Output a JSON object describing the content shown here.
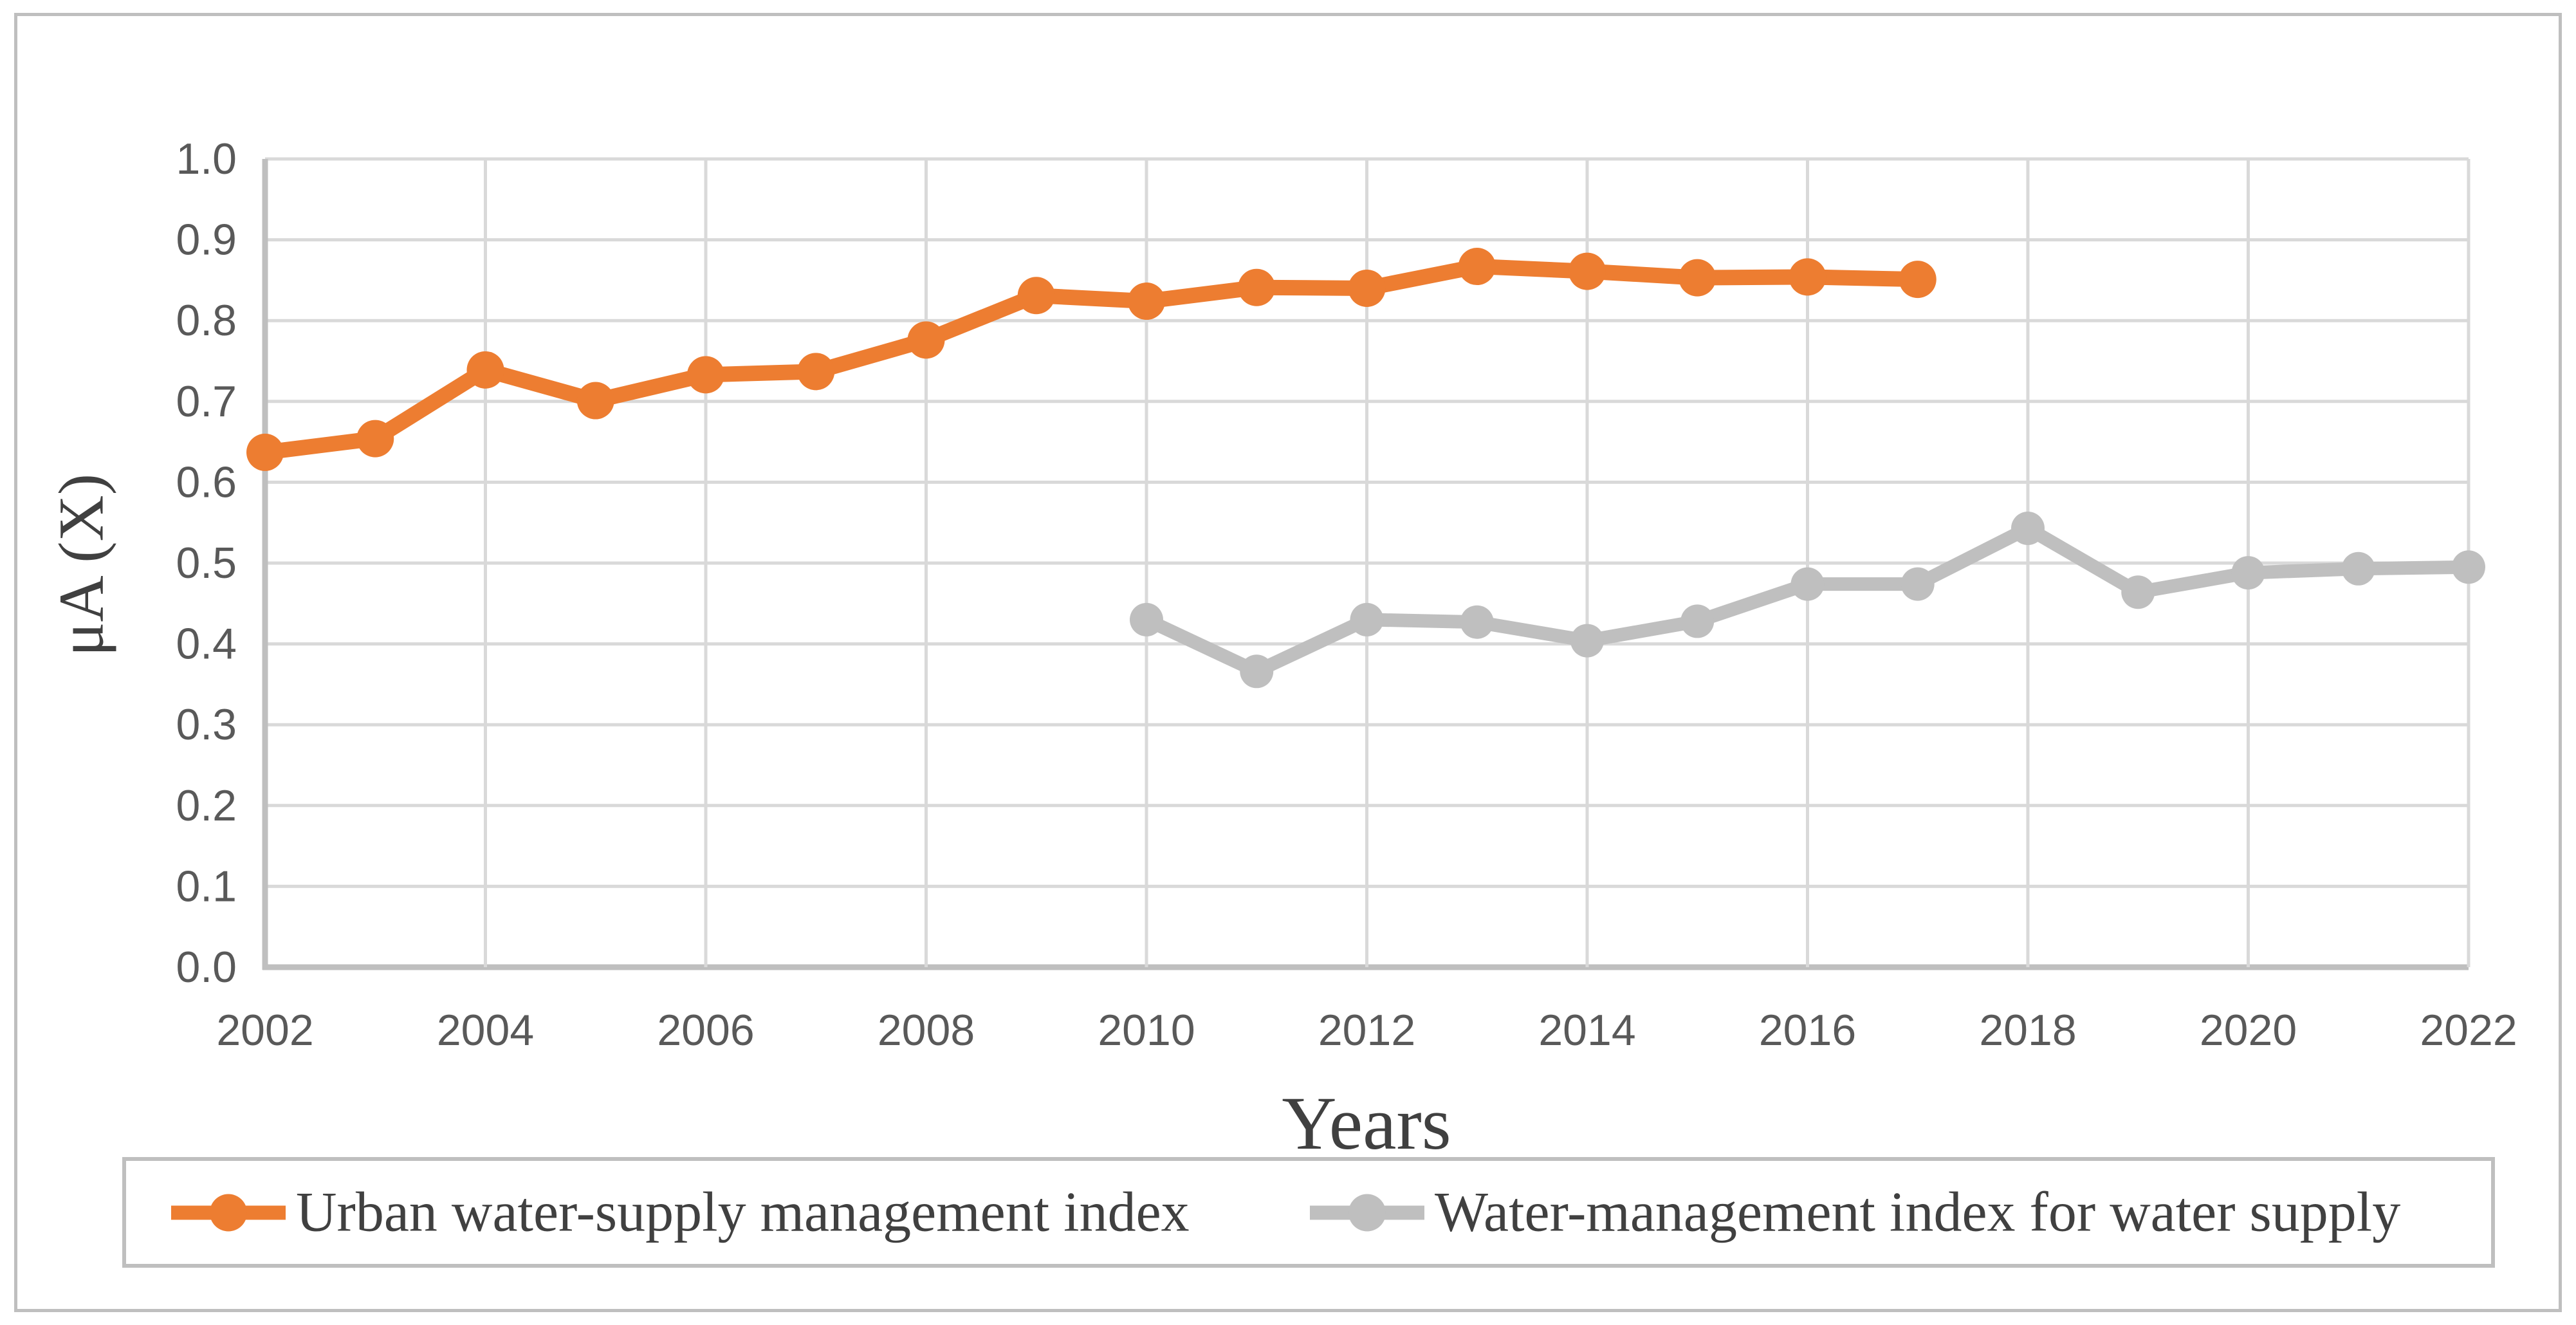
{
  "figure": {
    "background": "#FFFFFF",
    "border_color": "#BFBFBF"
  },
  "chart_data": {
    "type": "line",
    "title": "",
    "xlabel": "Years",
    "ylabel": "μA (X)",
    "grid": true,
    "legend_position": "bottom",
    "x_ticks": [
      2002,
      2004,
      2006,
      2008,
      2010,
      2012,
      2014,
      2016,
      2018,
      2020,
      2022
    ],
    "x_range": [
      2002,
      2022
    ],
    "ylim": [
      0.0,
      1.0
    ],
    "y_tick_step": 0.1,
    "y_tick_decimals": 1,
    "colors": {
      "gridline": "#D9D9D9",
      "axis_line": "#BFBFBF",
      "tick_text": "#595959",
      "title_text": "#404040"
    },
    "series": [
      {
        "name": "Urban water-supply management index",
        "color": "#ED7D31",
        "marker": "circle",
        "x": [
          2002,
          2003,
          2004,
          2005,
          2006,
          2007,
          2008,
          2009,
          2010,
          2011,
          2012,
          2013,
          2014,
          2015,
          2016,
          2017
        ],
        "values": [
          0.637,
          0.654,
          0.739,
          0.701,
          0.733,
          0.737,
          0.776,
          0.831,
          0.824,
          0.841,
          0.84,
          0.867,
          0.861,
          0.853,
          0.854,
          0.851
        ]
      },
      {
        "name": "Water-management index for water supply",
        "color": "#BFBFBF",
        "marker": "circle",
        "x": [
          2010,
          2011,
          2012,
          2013,
          2014,
          2015,
          2016,
          2017,
          2018,
          2019,
          2020,
          2021,
          2022
        ],
        "values": [
          0.43,
          0.366,
          0.43,
          0.427,
          0.404,
          0.428,
          0.474,
          0.474,
          0.543,
          0.464,
          0.488,
          0.493,
          0.495
        ]
      }
    ]
  }
}
